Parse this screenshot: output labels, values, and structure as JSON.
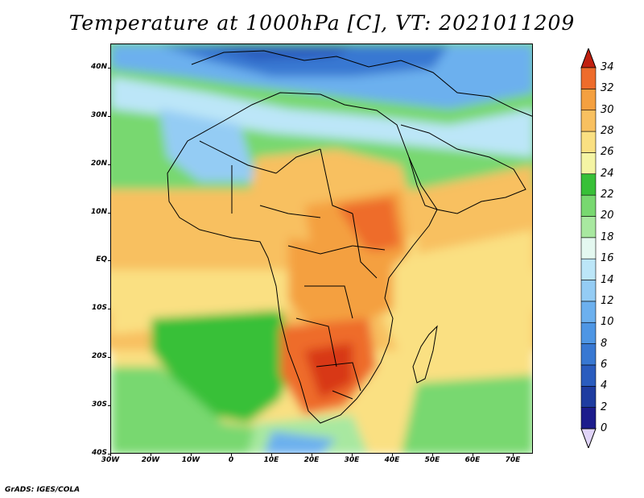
{
  "title": "Temperature at 1000hPa [C], VT: 2021011209",
  "footer": "GrADS: IGES/COLA",
  "map": {
    "lat_range": [
      -40,
      45
    ],
    "lon_range": [
      -30,
      75
    ],
    "lat_ticks": [
      {
        "value": 40,
        "label": "40N"
      },
      {
        "value": 30,
        "label": "30N"
      },
      {
        "value": 20,
        "label": "20N"
      },
      {
        "value": 10,
        "label": "10N"
      },
      {
        "value": 0,
        "label": "EQ"
      },
      {
        "value": -10,
        "label": "10S"
      },
      {
        "value": -20,
        "label": "20S"
      },
      {
        "value": -30,
        "label": "30S"
      },
      {
        "value": -40,
        "label": "40S"
      }
    ],
    "lon_ticks": [
      {
        "value": -30,
        "label": "30W"
      },
      {
        "value": -20,
        "label": "20W"
      },
      {
        "value": -10,
        "label": "10W"
      },
      {
        "value": 0,
        "label": "0"
      },
      {
        "value": 10,
        "label": "10E"
      },
      {
        "value": 20,
        "label": "20E"
      },
      {
        "value": 30,
        "label": "30E"
      },
      {
        "value": 40,
        "label": "40E"
      },
      {
        "value": 50,
        "label": "50E"
      },
      {
        "value": 60,
        "label": "60E"
      },
      {
        "value": 70,
        "label": "70E"
      }
    ]
  },
  "colorbar": {
    "levels": [
      0,
      2,
      4,
      6,
      8,
      10,
      12,
      14,
      16,
      18,
      20,
      22,
      24,
      26,
      28,
      30,
      32,
      34
    ],
    "colors": [
      "#1c1c8c",
      "#1e3ca0",
      "#2a5cbe",
      "#3878d2",
      "#4e96e4",
      "#6cb0ee",
      "#94ccf4",
      "#bce6f8",
      "#e4f8f0",
      "#a8e8a0",
      "#78d870",
      "#38c038",
      "#f4f4a4",
      "#fae082",
      "#f8c060",
      "#f4a040",
      "#ee6c2c",
      "#d83818"
    ],
    "under_color": "#e0d4f8",
    "over_color": "#c02010"
  }
}
